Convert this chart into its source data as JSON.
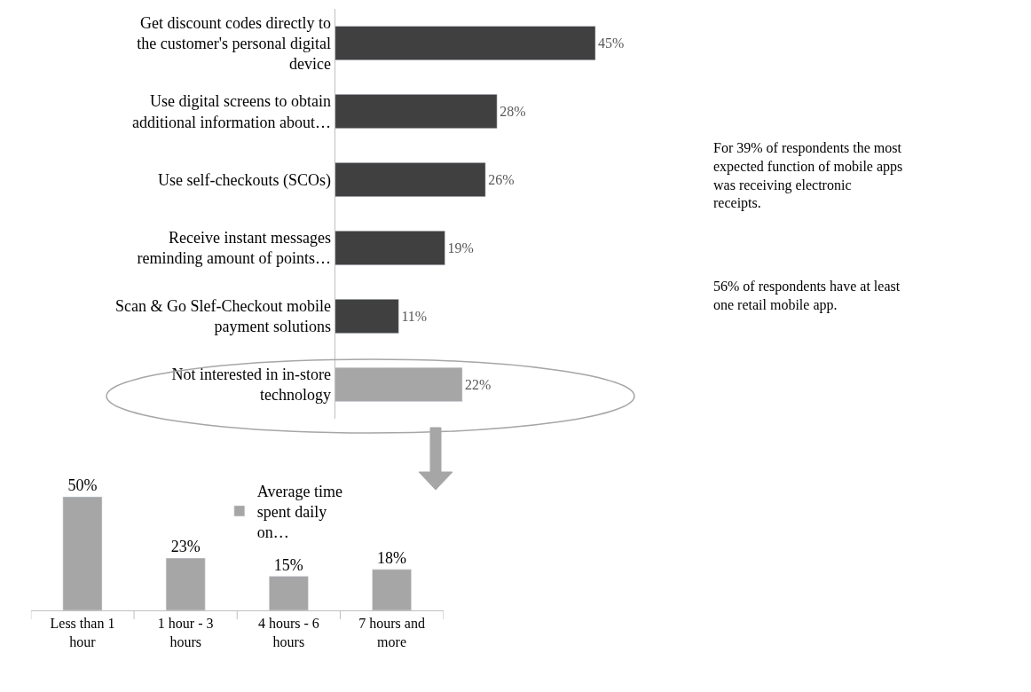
{
  "chart_data": [
    {
      "type": "bar",
      "orientation": "horizontal",
      "categories": [
        "Get discount codes directly to the customer's personal digital device",
        "Use digital screens to obtain additional information about…",
        "Use self-checkouts (SCOs)",
        "Receive instant messages reminding amount of points…",
        "Scan & Go Slef-Checkout mobile payment solutions",
        "Not interested in in-store technology"
      ],
      "values": [
        45,
        28,
        26,
        19,
        11,
        22
      ],
      "colors": [
        "#404040",
        "#404040",
        "#404040",
        "#404040",
        "#404040",
        "#a6a6a6"
      ],
      "value_labels": [
        "45%",
        "28%",
        "26%",
        "19%",
        "11%",
        "22%"
      ],
      "tick_labels": "y",
      "legend": false
    },
    {
      "type": "bar",
      "categories": [
        "Less than 1 hour",
        "1 hour - 3 hours",
        "4 hours - 6 hours",
        "7 hours and more"
      ],
      "series": [
        {
          "name": "Average time spent daily on…",
          "color": "#a6a6a6",
          "values": [
            50,
            23,
            15,
            18
          ],
          "value_labels": [
            "50%",
            "23%",
            "15%",
            "18%"
          ]
        }
      ],
      "tick_labels": "x",
      "legend": "top right"
    },
    {
      "type": "other",
      "annotations": [
        "For 39% of respondents the most expected function of mobile apps was receiving electronic receipts.",
        "56% of respondents have at least one retail mobile app."
      ]
    }
  ]
}
